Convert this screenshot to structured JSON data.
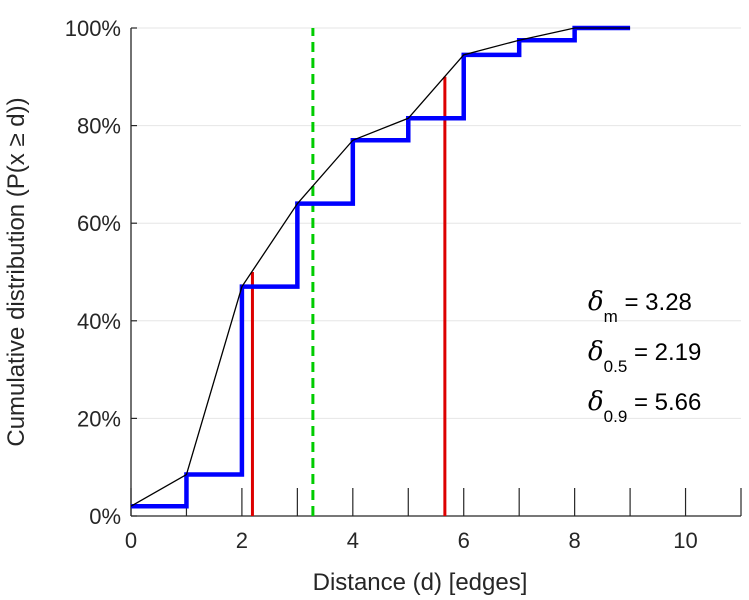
{
  "chart_data": {
    "type": "line",
    "xlabel": "Distance (d) [edges]",
    "ylabel": "Cumulative distribution (P(x ≥ d))",
    "xlim": [
      0,
      11
    ],
    "ylim": [
      0,
      100
    ],
    "x_ticks": [
      0,
      2,
      4,
      6,
      8,
      10
    ],
    "y_ticks": [
      0,
      20,
      40,
      60,
      80,
      100
    ],
    "y_tick_labels": [
      "0%",
      "20%",
      "40%",
      "60%",
      "80%",
      "100%"
    ],
    "grid": "horizontal",
    "series": [
      {
        "style": "step",
        "color": "#0000ff",
        "x": [
          0,
          1,
          2,
          3,
          4,
          5,
          6,
          7,
          8,
          9
        ],
        "y": [
          2,
          8.5,
          47,
          64,
          77,
          81.5,
          94.5,
          97.5,
          100,
          100
        ]
      },
      {
        "style": "line",
        "color": "#000000",
        "x": [
          0,
          1,
          2,
          3,
          4,
          5,
          6,
          7,
          8,
          9
        ],
        "y": [
          2,
          8.5,
          47,
          64,
          77,
          81.5,
          94.5,
          97.5,
          100,
          100
        ]
      }
    ],
    "vlines": [
      {
        "x": 2.19,
        "y": 50,
        "color": "#dd0000",
        "style": "solid"
      },
      {
        "x": 5.66,
        "y": 90,
        "color": "#dd0000",
        "style": "solid"
      },
      {
        "x": 3.28,
        "y": 100,
        "color": "#00cc00",
        "style": "dashed"
      }
    ],
    "annotations": [
      {
        "symbol": "δ",
        "sub": "m",
        "text": "= 3.28"
      },
      {
        "symbol": "δ",
        "sub": "0.5",
        "text": "= 2.19"
      },
      {
        "symbol": "δ",
        "sub": "0.9",
        "text": "= 5.66"
      }
    ]
  }
}
